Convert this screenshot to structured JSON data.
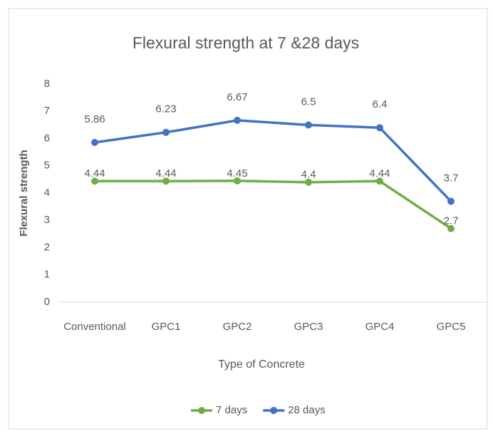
{
  "chart_data": {
    "type": "line",
    "title": "Flexural strength  at 7 &28 days",
    "x_label": "Type of Concrete",
    "y_label": "Flexural strength",
    "categories": [
      "Conventional",
      "GPC1",
      "GPC2",
      "GPC3",
      "GPC4",
      "GPC5"
    ],
    "series": [
      {
        "name": "7 days",
        "color": "#70ad47",
        "values": [
          4.44,
          4.44,
          4.45,
          4.4,
          4.44,
          2.7
        ]
      },
      {
        "name": "28 days",
        "color": "#4472c4",
        "values": [
          5.86,
          6.23,
          6.67,
          6.5,
          6.4,
          3.7
        ]
      }
    ],
    "ylim": [
      0,
      8
    ],
    "yticks": [
      0,
      1,
      2,
      3,
      4,
      5,
      6,
      7,
      8
    ],
    "grid": false,
    "legend": "bottom"
  }
}
